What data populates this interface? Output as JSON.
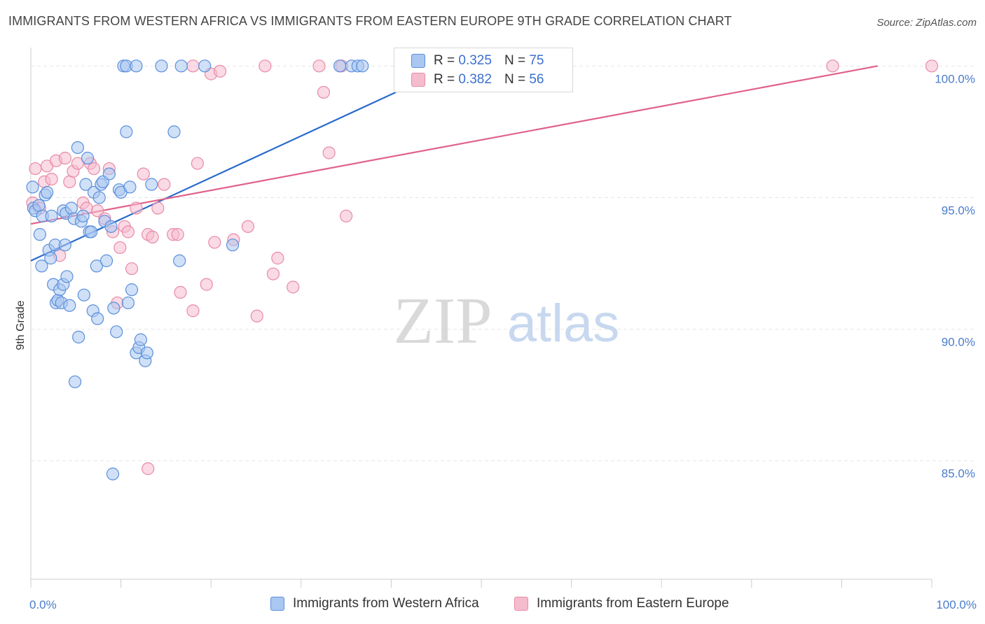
{
  "title": "IMMIGRANTS FROM WESTERN AFRICA VS IMMIGRANTS FROM EASTERN EUROPE 9TH GRADE CORRELATION CHART",
  "source": "Source: ZipAtlas.com",
  "watermark": {
    "zip": "ZIP",
    "atlas": "atlas"
  },
  "colors": {
    "blue_fill": "#a9c7f0",
    "blue_stroke": "#5a8fdc",
    "blue_line": "#2a6bcc",
    "pink_fill": "#f5bccd",
    "pink_stroke": "#e88aa6",
    "pink_line": "#e0628a",
    "tick_text": "#4a7ccc",
    "grid": "#e6e6e6"
  },
  "legend": {
    "rows": [
      {
        "r_label": "R = ",
        "r_value": "0.325",
        "n_label": "N = ",
        "n_value": "75"
      },
      {
        "r_label": "R = ",
        "r_value": "0.382",
        "n_label": "N = ",
        "n_value": "56"
      }
    ]
  },
  "chart_data": {
    "type": "scatter",
    "title": "IMMIGRANTS FROM WESTERN AFRICA VS IMMIGRANTS FROM EASTERN EUROPE 9TH GRADE CORRELATION CHART",
    "xlabel": "",
    "ylabel": "9th Grade",
    "xlim": [
      0,
      100
    ],
    "ylim": [
      80.5,
      100.7
    ],
    "x_tick_labels": [
      "0.0%",
      "100.0%"
    ],
    "y_ticks": [
      100,
      95,
      90,
      85
    ],
    "y_tick_labels": [
      "100.0%",
      "95.0%",
      "90.0%",
      "85.0%"
    ],
    "grid": true,
    "legend_position": "top-center",
    "series": [
      {
        "name": "Immigrants from Western Africa",
        "color": "blue",
        "trend": {
          "x": [
            0,
            40.5
          ],
          "y": [
            92.6,
            99.0
          ]
        },
        "points": [
          [
            0.2,
            95.4
          ],
          [
            0.3,
            94.6
          ],
          [
            0.5,
            94.5
          ],
          [
            0.9,
            94.7
          ],
          [
            1.0,
            93.6
          ],
          [
            1.2,
            92.4
          ],
          [
            1.3,
            94.3
          ],
          [
            1.6,
            95.1
          ],
          [
            1.8,
            95.2
          ],
          [
            2.0,
            93.0
          ],
          [
            2.2,
            92.7
          ],
          [
            2.3,
            94.3
          ],
          [
            2.5,
            91.7
          ],
          [
            2.7,
            93.2
          ],
          [
            2.8,
            91.0
          ],
          [
            3.0,
            91.1
          ],
          [
            3.2,
            91.5
          ],
          [
            3.4,
            91.0
          ],
          [
            3.6,
            91.7
          ],
          [
            3.6,
            94.5
          ],
          [
            3.8,
            93.2
          ],
          [
            3.9,
            94.4
          ],
          [
            4.0,
            92.0
          ],
          [
            4.3,
            90.9
          ],
          [
            4.5,
            94.6
          ],
          [
            4.8,
            94.2
          ],
          [
            5.2,
            96.9
          ],
          [
            5.3,
            89.7
          ],
          [
            5.6,
            94.1
          ],
          [
            5.8,
            94.3
          ],
          [
            5.9,
            91.3
          ],
          [
            6.1,
            95.5
          ],
          [
            6.3,
            96.5
          ],
          [
            6.5,
            93.7
          ],
          [
            6.7,
            93.7
          ],
          [
            6.9,
            90.7
          ],
          [
            7.0,
            95.2
          ],
          [
            7.3,
            92.4
          ],
          [
            7.4,
            90.4
          ],
          [
            7.6,
            95.0
          ],
          [
            7.8,
            95.5
          ],
          [
            8.0,
            95.6
          ],
          [
            8.2,
            94.1
          ],
          [
            8.4,
            92.6
          ],
          [
            8.7,
            95.9
          ],
          [
            8.9,
            93.9
          ],
          [
            9.2,
            90.8
          ],
          [
            9.5,
            89.9
          ],
          [
            9.8,
            95.3
          ],
          [
            10.0,
            95.2
          ],
          [
            10.6,
            97.5
          ],
          [
            10.8,
            91.0
          ],
          [
            11.0,
            95.4
          ],
          [
            11.2,
            91.5
          ],
          [
            11.7,
            89.1
          ],
          [
            12.0,
            89.3
          ],
          [
            12.2,
            89.6
          ],
          [
            12.7,
            88.8
          ],
          [
            12.9,
            89.1
          ],
          [
            13.4,
            95.5
          ],
          [
            15.9,
            97.5
          ],
          [
            16.5,
            92.6
          ],
          [
            22.4,
            93.2
          ],
          [
            4.9,
            88.0
          ],
          [
            9.1,
            84.5
          ],
          [
            10.3,
            100.0
          ],
          [
            10.6,
            100.0
          ],
          [
            11.7,
            100.0
          ],
          [
            14.5,
            100.0
          ],
          [
            16.7,
            100.0
          ],
          [
            19.3,
            100.0
          ],
          [
            34.3,
            100.0
          ],
          [
            35.6,
            100.0
          ],
          [
            36.3,
            100.0
          ],
          [
            36.8,
            100.0
          ]
        ]
      },
      {
        "name": "Immigrants from Eastern Europe",
        "color": "pink",
        "trend": {
          "x": [
            0,
            94.0
          ],
          "y": [
            94.0,
            100.0
          ]
        },
        "points": [
          [
            0.2,
            94.8
          ],
          [
            0.5,
            96.1
          ],
          [
            1.0,
            94.6
          ],
          [
            1.5,
            95.6
          ],
          [
            1.8,
            96.2
          ],
          [
            2.3,
            95.7
          ],
          [
            2.8,
            96.4
          ],
          [
            3.2,
            92.8
          ],
          [
            3.8,
            96.5
          ],
          [
            4.3,
            95.6
          ],
          [
            4.7,
            96.0
          ],
          [
            5.2,
            96.3
          ],
          [
            5.8,
            94.8
          ],
          [
            6.2,
            94.6
          ],
          [
            6.6,
            96.3
          ],
          [
            7.0,
            96.1
          ],
          [
            7.4,
            94.5
          ],
          [
            8.2,
            94.2
          ],
          [
            8.7,
            96.1
          ],
          [
            9.1,
            93.7
          ],
          [
            9.6,
            91.0
          ],
          [
            9.9,
            93.1
          ],
          [
            10.4,
            93.9
          ],
          [
            10.8,
            93.7
          ],
          [
            11.2,
            92.3
          ],
          [
            11.7,
            94.6
          ],
          [
            12.5,
            95.9
          ],
          [
            13.0,
            93.6
          ],
          [
            13.5,
            93.5
          ],
          [
            14.1,
            94.6
          ],
          [
            14.8,
            95.5
          ],
          [
            15.8,
            93.6
          ],
          [
            16.3,
            93.6
          ],
          [
            16.6,
            91.4
          ],
          [
            18.0,
            90.7
          ],
          [
            18.5,
            96.3
          ],
          [
            19.5,
            91.7
          ],
          [
            20.4,
            93.3
          ],
          [
            22.5,
            93.4
          ],
          [
            24.1,
            93.9
          ],
          [
            25.1,
            90.5
          ],
          [
            26.9,
            92.1
          ],
          [
            27.4,
            92.7
          ],
          [
            29.1,
            91.6
          ],
          [
            33.1,
            96.7
          ],
          [
            35.0,
            94.3
          ],
          [
            13.0,
            84.7
          ],
          [
            18.0,
            100.0
          ],
          [
            20.0,
            99.7
          ],
          [
            21.0,
            99.8
          ],
          [
            26.0,
            100.0
          ],
          [
            32.0,
            100.0
          ],
          [
            32.5,
            99.0
          ],
          [
            34.5,
            100.0
          ],
          [
            89.0,
            100.0
          ],
          [
            100.0,
            100.0
          ]
        ]
      }
    ]
  }
}
